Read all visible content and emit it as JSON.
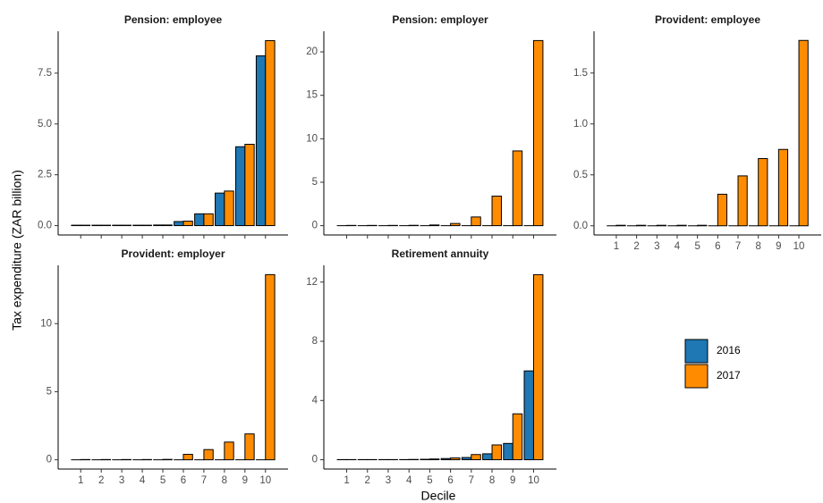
{
  "x_label": "Decile",
  "y_label": "Tax expenditure (ZAR billion)",
  "legend": "right",
  "chart_data": [
    {
      "type": "bar",
      "title": "Pension: employee",
      "show_x_labels": false,
      "categories": [
        "1",
        "2",
        "3",
        "4",
        "5",
        "6",
        "7",
        "8",
        "9",
        "10"
      ],
      "series": [
        {
          "name": "2016",
          "color": "#1f77b4",
          "values": [
            0.02,
            0.02,
            0.02,
            0.02,
            0.03,
            0.2,
            0.58,
            1.6,
            3.88,
            8.35
          ]
        },
        {
          "name": "2017",
          "color": "#ff8c00",
          "values": [
            0.02,
            0.02,
            0.02,
            0.02,
            0.03,
            0.22,
            0.58,
            1.7,
            4.0,
            9.1
          ]
        }
      ],
      "ylim": [
        -0.46,
        9.56
      ],
      "yticks": [
        {
          "value": 0,
          "label": "0.0"
        },
        {
          "value": 2.5,
          "label": "2.5"
        },
        {
          "value": 5,
          "label": "5.0"
        },
        {
          "value": 7.5,
          "label": "7.5"
        }
      ]
    },
    {
      "type": "bar",
      "title": "Pension: employer",
      "show_x_labels": false,
      "categories": [
        "1",
        "2",
        "3",
        "4",
        "5",
        "6",
        "7",
        "8",
        "9",
        "10"
      ],
      "series": [
        {
          "name": "2016",
          "color": "#1f77b4",
          "values": [
            0,
            0,
            0,
            0,
            0,
            0,
            0,
            0,
            0,
            0
          ]
        },
        {
          "name": "2017",
          "color": "#ff8c00",
          "values": [
            0.03,
            0.03,
            0.03,
            0.04,
            0.08,
            0.25,
            1.0,
            3.4,
            8.6,
            21.3
          ]
        }
      ],
      "ylim": [
        -1.07,
        22.37
      ],
      "yticks": [
        0,
        5,
        10,
        15,
        20
      ]
    },
    {
      "type": "bar",
      "title": "Provident: employee",
      "show_x_labels": true,
      "categories": [
        "1",
        "2",
        "3",
        "4",
        "5",
        "6",
        "7",
        "8",
        "9",
        "10"
      ],
      "series": [
        {
          "name": "2016",
          "color": "#1f77b4",
          "values": [
            0,
            0,
            0,
            0,
            0,
            0,
            0,
            0,
            0,
            0
          ]
        },
        {
          "name": "2017",
          "color": "#ff8c00",
          "values": [
            0.005,
            0.005,
            0.005,
            0.005,
            0.005,
            0.31,
            0.49,
            0.66,
            0.75,
            1.82
          ]
        }
      ],
      "ylim": [
        -0.09,
        1.91
      ],
      "yticks": [
        {
          "value": 0,
          "label": "0.0"
        },
        {
          "value": 0.5,
          "label": "0.5"
        },
        {
          "value": 1,
          "label": "1.0"
        },
        {
          "value": 1.5,
          "label": "1.5"
        }
      ]
    },
    {
      "type": "bar",
      "title": "Provident: employer",
      "show_x_labels": true,
      "categories": [
        "1",
        "2",
        "3",
        "4",
        "5",
        "6",
        "7",
        "8",
        "9",
        "10"
      ],
      "series": [
        {
          "name": "2016",
          "color": "#1f77b4",
          "values": [
            0,
            0,
            0,
            0,
            0,
            0,
            0,
            0,
            0,
            0
          ]
        },
        {
          "name": "2017",
          "color": "#ff8c00",
          "values": [
            0.02,
            0.02,
            0.02,
            0.02,
            0.03,
            0.4,
            0.75,
            1.3,
            1.9,
            13.6
          ]
        }
      ],
      "ylim": [
        -0.68,
        14.28
      ],
      "yticks": [
        0,
        5,
        10
      ]
    },
    {
      "type": "bar",
      "title": "Retirement annuity",
      "show_x_labels": true,
      "categories": [
        "1",
        "2",
        "3",
        "4",
        "5",
        "6",
        "7",
        "8",
        "9",
        "10"
      ],
      "series": [
        {
          "name": "2016",
          "color": "#1f77b4",
          "values": [
            0.01,
            0.01,
            0.01,
            0.01,
            0.03,
            0.08,
            0.15,
            0.4,
            1.1,
            6.0
          ]
        },
        {
          "name": "2017",
          "color": "#ff8c00",
          "values": [
            0.01,
            0.01,
            0.01,
            0.02,
            0.05,
            0.12,
            0.35,
            1.0,
            3.1,
            12.5
          ]
        }
      ],
      "ylim": [
        -0.63,
        13.13
      ],
      "yticks": [
        0,
        4,
        8,
        12
      ]
    }
  ]
}
